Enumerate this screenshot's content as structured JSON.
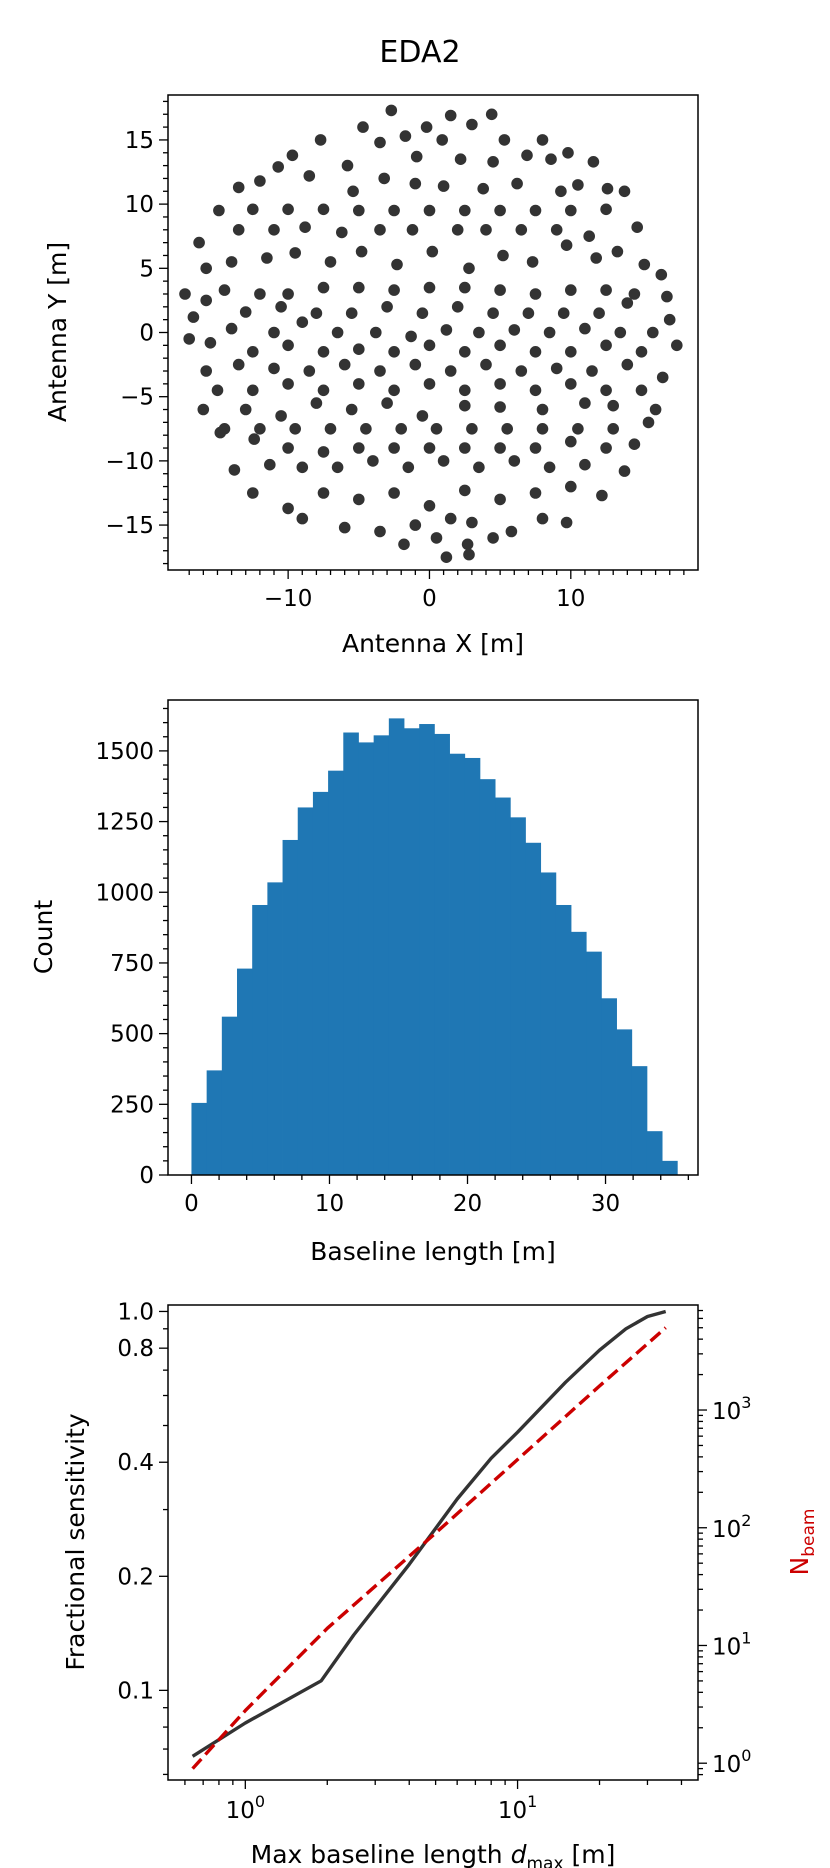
{
  "chart_data": [
    {
      "type": "scatter",
      "title": "EDA2",
      "xlabel": "Antenna X [m]",
      "ylabel": "Antenna Y [m]",
      "xlim": [
        -18.5,
        19
      ],
      "ylim": [
        -18.5,
        18.5
      ],
      "xticks": [
        -10,
        0,
        10
      ],
      "xtick_labels": [
        "−10",
        "0",
        "10"
      ],
      "yticks": [
        -15,
        -10,
        -5,
        0,
        5,
        10,
        15
      ],
      "ytick_labels": [
        "−15",
        "−10",
        "−5",
        "0",
        "5",
        "10",
        "15"
      ],
      "marker_color": "#333333",
      "points": [
        [
          -2.7,
          17.3
        ],
        [
          1.5,
          16.9
        ],
        [
          4.4,
          17.0
        ],
        [
          -4.7,
          16.0
        ],
        [
          -0.2,
          16.0
        ],
        [
          3.0,
          16.2
        ],
        [
          -7.7,
          15.0
        ],
        [
          -3.5,
          14.8
        ],
        [
          -1.7,
          15.3
        ],
        [
          0.9,
          15.0
        ],
        [
          5.3,
          15.0
        ],
        [
          8.0,
          15.0
        ],
        [
          -9.7,
          13.8
        ],
        [
          -5.8,
          13.0
        ],
        [
          -0.9,
          13.7
        ],
        [
          2.2,
          13.5
        ],
        [
          4.5,
          13.3
        ],
        [
          6.9,
          13.8
        ],
        [
          8.6,
          13.5
        ],
        [
          9.8,
          14.0
        ],
        [
          11.6,
          13.3
        ],
        [
          -13.5,
          11.3
        ],
        [
          -12.0,
          11.8
        ],
        [
          -10.7,
          12.9
        ],
        [
          -8.5,
          12.2
        ],
        [
          -5.4,
          11.0
        ],
        [
          -3.2,
          12.0
        ],
        [
          -1.0,
          11.6
        ],
        [
          1.0,
          11.4
        ],
        [
          3.8,
          11.2
        ],
        [
          6.2,
          11.6
        ],
        [
          9.3,
          11.0
        ],
        [
          10.5,
          11.5
        ],
        [
          12.6,
          11.2
        ],
        [
          13.8,
          11.0
        ],
        [
          -14.9,
          9.5
        ],
        [
          -12.5,
          9.6
        ],
        [
          -10.0,
          9.6
        ],
        [
          -7.5,
          9.6
        ],
        [
          -5.0,
          9.5
        ],
        [
          -2.5,
          9.5
        ],
        [
          0.0,
          9.5
        ],
        [
          2.5,
          9.5
        ],
        [
          5.0,
          9.5
        ],
        [
          7.5,
          9.5
        ],
        [
          10.0,
          9.5
        ],
        [
          12.5,
          9.6
        ],
        [
          -16.3,
          7.0
        ],
        [
          -13.5,
          8.0
        ],
        [
          -11.0,
          8.0
        ],
        [
          -8.8,
          8.2
        ],
        [
          -6.2,
          7.8
        ],
        [
          -3.5,
          8.0
        ],
        [
          -1.2,
          8.0
        ],
        [
          2.0,
          8.0
        ],
        [
          4.0,
          8.0
        ],
        [
          6.5,
          8.0
        ],
        [
          9.0,
          8.0
        ],
        [
          11.3,
          7.5
        ],
        [
          14.7,
          8.2
        ],
        [
          -15.8,
          5.0
        ],
        [
          -14.0,
          5.5
        ],
        [
          -11.5,
          5.8
        ],
        [
          -9.5,
          6.2
        ],
        [
          -7.0,
          5.5
        ],
        [
          -4.8,
          6.3
        ],
        [
          -2.3,
          5.3
        ],
        [
          0.2,
          6.3
        ],
        [
          2.8,
          5.0
        ],
        [
          5.2,
          6.0
        ],
        [
          7.3,
          5.5
        ],
        [
          9.7,
          6.8
        ],
        [
          11.8,
          5.8
        ],
        [
          13.3,
          6.3
        ],
        [
          15.2,
          5.3
        ],
        [
          16.4,
          4.5
        ],
        [
          -14.5,
          3.3
        ],
        [
          -12.0,
          3.0
        ],
        [
          -10.0,
          3.0
        ],
        [
          -7.5,
          3.5
        ],
        [
          -5.0,
          3.5
        ],
        [
          -2.5,
          3.3
        ],
        [
          0.0,
          3.5
        ],
        [
          2.5,
          3.5
        ],
        [
          5.0,
          3.3
        ],
        [
          7.5,
          3.0
        ],
        [
          10.0,
          3.3
        ],
        [
          12.5,
          3.3
        ],
        [
          14.5,
          3.0
        ],
        [
          -17.3,
          3.0
        ],
        [
          -15.8,
          2.5
        ],
        [
          -13.0,
          1.6
        ],
        [
          -10.5,
          2.0
        ],
        [
          -8.0,
          1.5
        ],
        [
          -5.5,
          1.5
        ],
        [
          -3.0,
          2.0
        ],
        [
          -0.5,
          1.5
        ],
        [
          2.0,
          2.0
        ],
        [
          4.5,
          1.5
        ],
        [
          7.0,
          1.5
        ],
        [
          9.5,
          1.5
        ],
        [
          12.0,
          1.5
        ],
        [
          14.0,
          2.3
        ],
        [
          16.8,
          2.8
        ],
        [
          -16.7,
          1.2
        ],
        [
          -14.0,
          0.3
        ],
        [
          -11.0,
          0.0
        ],
        [
          -9.0,
          0.8
        ],
        [
          -6.5,
          0.0
        ],
        [
          -3.8,
          0.0
        ],
        [
          -1.3,
          -0.3
        ],
        [
          1.2,
          0.2
        ],
        [
          3.5,
          0.0
        ],
        [
          6.0,
          0.2
        ],
        [
          8.5,
          0.0
        ],
        [
          11.0,
          0.3
        ],
        [
          13.5,
          0.0
        ],
        [
          15.8,
          0.0
        ],
        [
          17.0,
          1.0
        ],
        [
          -17.0,
          -0.5
        ],
        [
          -15.5,
          -0.8
        ],
        [
          -12.5,
          -1.5
        ],
        [
          -10.0,
          -1.0
        ],
        [
          -7.5,
          -1.5
        ],
        [
          -5.0,
          -1.3
        ],
        [
          -2.5,
          -1.5
        ],
        [
          0.0,
          -1.0
        ],
        [
          2.5,
          -1.5
        ],
        [
          5.0,
          -1.0
        ],
        [
          7.5,
          -1.5
        ],
        [
          10.0,
          -1.5
        ],
        [
          12.5,
          -1.0
        ],
        [
          15.0,
          -1.5
        ],
        [
          17.5,
          -1.0
        ],
        [
          -15.8,
          -3.0
        ],
        [
          -13.5,
          -2.5
        ],
        [
          -11.0,
          -2.8
        ],
        [
          -8.5,
          -3.0
        ],
        [
          -6.0,
          -2.5
        ],
        [
          -3.5,
          -3.0
        ],
        [
          -1.0,
          -2.5
        ],
        [
          1.5,
          -3.0
        ],
        [
          4.0,
          -2.5
        ],
        [
          6.5,
          -3.0
        ],
        [
          9.0,
          -2.8
        ],
        [
          11.5,
          -3.0
        ],
        [
          14.0,
          -2.5
        ],
        [
          16.5,
          -3.5
        ],
        [
          -15.0,
          -4.5
        ],
        [
          -12.5,
          -4.5
        ],
        [
          -10.0,
          -4.0
        ],
        [
          -7.5,
          -4.5
        ],
        [
          -5.0,
          -4.0
        ],
        [
          -2.5,
          -4.5
        ],
        [
          0.0,
          -4.0
        ],
        [
          2.5,
          -4.5
        ],
        [
          5.0,
          -4.0
        ],
        [
          7.5,
          -4.5
        ],
        [
          10.0,
          -4.0
        ],
        [
          12.5,
          -4.5
        ],
        [
          15.0,
          -4.5
        ],
        [
          -16.0,
          -6.0
        ],
        [
          -13.0,
          -6.0
        ],
        [
          -10.5,
          -6.5
        ],
        [
          -8.0,
          -5.5
        ],
        [
          -5.5,
          -6.0
        ],
        [
          -3.0,
          -5.5
        ],
        [
          -0.5,
          -6.5
        ],
        [
          2.5,
          -5.7
        ],
        [
          5.0,
          -5.8
        ],
        [
          8.0,
          -6.0
        ],
        [
          11.0,
          -5.5
        ],
        [
          13.0,
          -5.7
        ],
        [
          16.0,
          -6.0
        ],
        [
          -14.5,
          -7.5
        ],
        [
          -12.0,
          -7.5
        ],
        [
          -9.5,
          -7.5
        ],
        [
          -7.0,
          -7.5
        ],
        [
          -4.5,
          -7.5
        ],
        [
          -2.0,
          -7.5
        ],
        [
          0.5,
          -7.5
        ],
        [
          3.0,
          -7.5
        ],
        [
          5.5,
          -7.5
        ],
        [
          8.0,
          -7.5
        ],
        [
          10.5,
          -7.5
        ],
        [
          13.0,
          -7.5
        ],
        [
          15.5,
          -7.0
        ],
        [
          -14.8,
          -7.8
        ],
        [
          -12.4,
          -8.3
        ],
        [
          -10.0,
          -9.0
        ],
        [
          -7.5,
          -9.3
        ],
        [
          -5.0,
          -9.0
        ],
        [
          -2.5,
          -9.0
        ],
        [
          0.0,
          -9.0
        ],
        [
          2.5,
          -9.0
        ],
        [
          5.0,
          -9.0
        ],
        [
          7.5,
          -9.0
        ],
        [
          10.0,
          -8.5
        ],
        [
          12.5,
          -9.0
        ],
        [
          14.5,
          -8.7
        ],
        [
          -13.8,
          -10.7
        ],
        [
          -11.3,
          -10.3
        ],
        [
          -9.0,
          -10.5
        ],
        [
          -6.5,
          -10.5
        ],
        [
          -4.0,
          -10.0
        ],
        [
          -1.5,
          -10.5
        ],
        [
          1.0,
          -10.0
        ],
        [
          3.5,
          -10.5
        ],
        [
          6.0,
          -10.0
        ],
        [
          8.5,
          -10.5
        ],
        [
          11.0,
          -10.3
        ],
        [
          13.8,
          -10.8
        ],
        [
          -12.5,
          -12.5
        ],
        [
          -10.0,
          -13.7
        ],
        [
          -7.5,
          -12.5
        ],
        [
          -5.0,
          -13.0
        ],
        [
          -2.5,
          -12.5
        ],
        [
          0.0,
          -13.5
        ],
        [
          2.5,
          -12.3
        ],
        [
          5.0,
          -13.0
        ],
        [
          7.5,
          -12.5
        ],
        [
          10.0,
          -12.0
        ],
        [
          12.2,
          -12.7
        ],
        [
          -9.0,
          -14.5
        ],
        [
          -6.0,
          -15.2
        ],
        [
          -3.5,
          -15.5
        ],
        [
          -1.0,
          -15.0
        ],
        [
          1.5,
          -14.5
        ],
        [
          3.0,
          -14.8
        ],
        [
          5.8,
          -15.5
        ],
        [
          8.0,
          -14.5
        ],
        [
          9.7,
          -14.8
        ],
        [
          -1.8,
          -16.5
        ],
        [
          0.5,
          -16.0
        ],
        [
          2.7,
          -16.5
        ],
        [
          4.5,
          -16.0
        ],
        [
          1.2,
          -17.5
        ],
        [
          2.8,
          -17.3
        ]
      ]
    },
    {
      "type": "bar",
      "xlabel": "Baseline length [m]",
      "ylabel": "Count",
      "xlim": [
        -1.7,
        36.7
      ],
      "ylim": [
        0,
        1680
      ],
      "xticks": [
        0,
        10,
        20,
        30
      ],
      "yticks": [
        0,
        250,
        500,
        750,
        1000,
        1250,
        1500
      ],
      "bar_color": "#1f77b4",
      "bin_edges": [
        0.0,
        1.1,
        2.2,
        3.3,
        4.4,
        5.5,
        6.6,
        7.7,
        8.8,
        9.9,
        11.0,
        12.1,
        13.2,
        14.3,
        15.4,
        16.5,
        17.6,
        18.7,
        19.8,
        20.9,
        22.0,
        23.1,
        24.2,
        25.3,
        26.4,
        27.5,
        28.6,
        29.7,
        30.8,
        31.9,
        33.0,
        34.1,
        35.2
      ],
      "values": [
        255,
        370,
        560,
        730,
        955,
        1035,
        1185,
        1300,
        1355,
        1430,
        1565,
        1530,
        1555,
        1615,
        1580,
        1595,
        1560,
        1490,
        1475,
        1400,
        1335,
        1265,
        1175,
        1070,
        955,
        860,
        790,
        625,
        515,
        385,
        155,
        50
      ]
    },
    {
      "type": "line",
      "xlabel": "Max baseline length d_max [m]",
      "xlabel_main": "Max baseline length ",
      "xlabel_var": "d",
      "xlabel_sub": "max",
      "xlabel_unit": " [m]",
      "ylabel": "Fractional sensitivity",
      "ylabel_right_main": "N",
      "ylabel_right_sub": "beam",
      "xscale": "log",
      "yscale": "log",
      "xlim": [
        0.52,
        46
      ],
      "ylim": [
        0.058,
        1.04
      ],
      "y2lim": [
        0.72,
        7800
      ],
      "xticks": [
        1,
        10
      ],
      "xtick_labels": [
        {
          "base": "10",
          "exp": "0"
        },
        {
          "base": "10",
          "exp": "1"
        }
      ],
      "yticks": [
        0.1,
        0.2,
        0.4,
        0.8,
        1.0
      ],
      "ytick_labels": [
        "0.1",
        "0.2",
        "0.4",
        "0.8",
        "1.0"
      ],
      "y2ticks": [
        1,
        10,
        100,
        1000
      ],
      "y2tick_labels": [
        {
          "base": "10",
          "exp": "0"
        },
        {
          "base": "10",
          "exp": "1"
        },
        {
          "base": "10",
          "exp": "2"
        },
        {
          "base": "10",
          "exp": "3"
        }
      ],
      "series": [
        {
          "axis": "left",
          "color": "#333333",
          "style": "solid",
          "x": [
            0.64,
            1.0,
            1.9,
            2.5,
            4.0,
            6.0,
            8.0,
            10.0,
            15.0,
            20.0,
            25.0,
            30.0,
            35.0
          ],
          "y": [
            0.067,
            0.082,
            0.106,
            0.14,
            0.215,
            0.32,
            0.41,
            0.48,
            0.65,
            0.79,
            0.9,
            0.97,
            1.0
          ]
        },
        {
          "axis": "right",
          "color": "#cc0000",
          "style": "dashed",
          "x": [
            0.64,
            1.0,
            2.0,
            5.0,
            10.0,
            20.0,
            35.0
          ],
          "y": [
            0.9,
            2.8,
            14,
            90,
            380,
            1600,
            5000
          ]
        }
      ]
    }
  ]
}
